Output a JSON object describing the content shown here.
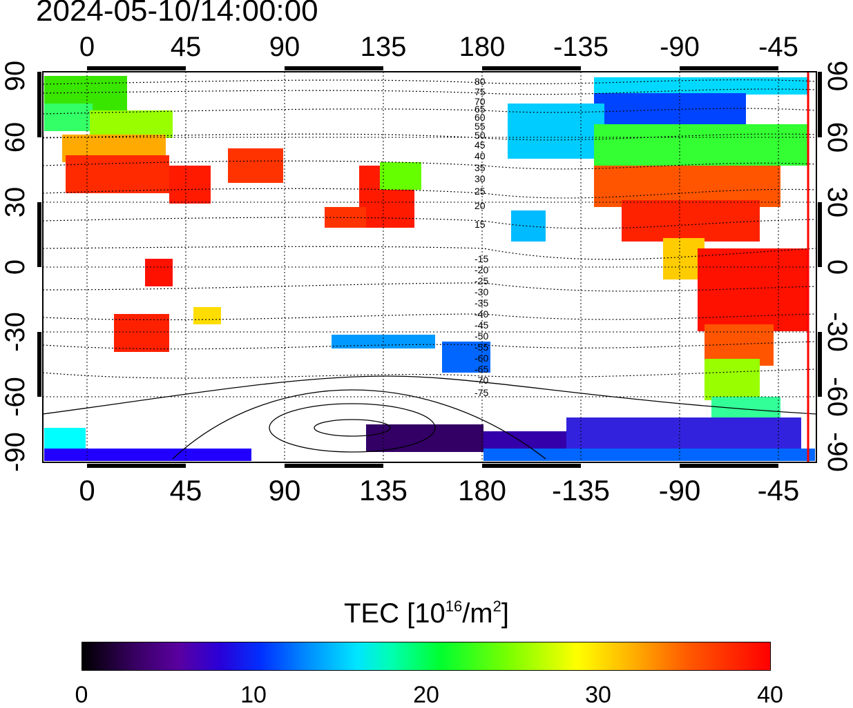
{
  "timestamp": "2024-05-10/14:00:00",
  "top_lon_labels": [
    "0",
    "45",
    "90",
    "135",
    "180",
    "-135",
    "-90",
    "-45"
  ],
  "bottom_lon_labels": [
    "0",
    "45",
    "90",
    "135",
    "180",
    "-135",
    "-90",
    "-45"
  ],
  "left_lat_labels": [
    "90",
    "60",
    "30",
    "0",
    "-30",
    "-60",
    "-90"
  ],
  "right_lat_labels": [
    "90",
    "60",
    "30",
    "0",
    "-30",
    "-60",
    "-90"
  ],
  "contour_labels": [
    "80",
    "75",
    "70",
    "65",
    "60",
    "55",
    "50",
    "45",
    "40",
    "35",
    "30",
    "25",
    "20",
    "15",
    "-15",
    "-20",
    "-25",
    "-30",
    "-35",
    "-40",
    "-45",
    "-50",
    "-55",
    "-60",
    "-65",
    "-70",
    "-75"
  ],
  "colorbar": {
    "title_main": "TEC  [10",
    "title_exp1": "16",
    "title_mid": "/m",
    "title_exp2": "2",
    "title_end": "]",
    "ticks": [
      "0",
      "10",
      "20",
      "30",
      "40"
    ]
  },
  "colors": {
    "terminator_line": "#ff0000",
    "grid": "#000000"
  }
}
